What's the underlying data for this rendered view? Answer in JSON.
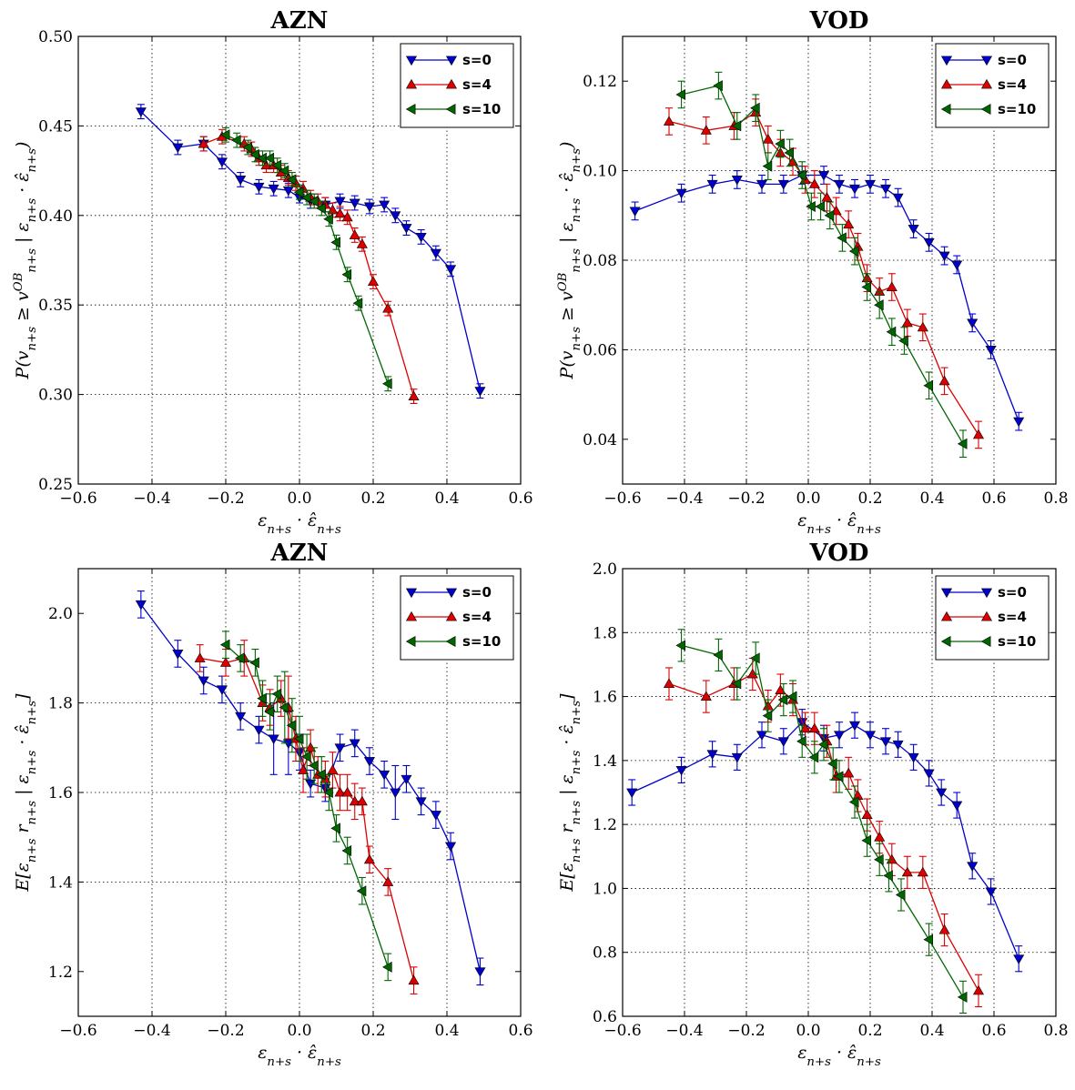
{
  "chart_data": [
    {
      "type": "line",
      "title": "AZN",
      "xlabel": "ε_{n+s} · ε̂_{n+s}",
      "ylabel": "P(v_{n+s} ≥ v^{OB}_{n+s} | ε_{n+s} · ε̂_{n+s})",
      "xlim": [
        -0.6,
        0.6
      ],
      "ylim": [
        0.25,
        0.5
      ],
      "xticks": [
        "−0.6",
        "−0.4",
        "−0.2",
        "0.0",
        "0.2",
        "0.4",
        "0.6"
      ],
      "yticks": [
        "0.25",
        "0.30",
        "0.35",
        "0.40",
        "0.45",
        "0.50"
      ],
      "xtick_values": [
        -0.6,
        -0.4,
        -0.2,
        0.0,
        0.2,
        0.4,
        0.6
      ],
      "ytick_values": [
        0.25,
        0.3,
        0.35,
        0.4,
        0.45,
        0.5
      ],
      "grid": true,
      "legend": "top-right",
      "series": [
        {
          "name": "s=0",
          "color": "#0000cc",
          "marker": "tri-down",
          "x": [
            -0.43,
            -0.33,
            -0.26,
            -0.21,
            -0.16,
            -0.11,
            -0.07,
            -0.03,
            0.0,
            0.03,
            0.07,
            0.11,
            0.15,
            0.19,
            0.23,
            0.26,
            0.29,
            0.33,
            0.37,
            0.41,
            0.49
          ],
          "y": [
            0.458,
            0.438,
            0.44,
            0.43,
            0.42,
            0.416,
            0.415,
            0.414,
            0.41,
            0.408,
            0.406,
            0.408,
            0.407,
            0.405,
            0.406,
            0.4,
            0.393,
            0.388,
            0.379,
            0.37,
            0.302
          ],
          "err": [
            0.004,
            0.004,
            0.004,
            0.004,
            0.004,
            0.004,
            0.004,
            0.004,
            0.003,
            0.004,
            0.004,
            0.004,
            0.004,
            0.004,
            0.004,
            0.004,
            0.004,
            0.004,
            0.004,
            0.004,
            0.004
          ]
        },
        {
          "name": "s=4",
          "color": "#dd0000",
          "marker": "tri-up",
          "x": [
            -0.26,
            -0.21,
            -0.15,
            -0.13,
            -0.11,
            -0.09,
            -0.07,
            -0.05,
            -0.03,
            -0.01,
            0.01,
            0.03,
            0.05,
            0.07,
            0.09,
            0.11,
            0.13,
            0.15,
            0.17,
            0.2,
            0.24,
            0.31
          ],
          "y": [
            0.44,
            0.444,
            0.44,
            0.437,
            0.432,
            0.428,
            0.428,
            0.424,
            0.421,
            0.418,
            0.415,
            0.41,
            0.408,
            0.406,
            0.403,
            0.401,
            0.399,
            0.389,
            0.384,
            0.363,
            0.348,
            0.299
          ],
          "err": [
            0.004,
            0.004,
            0.004,
            0.004,
            0.004,
            0.004,
            0.004,
            0.004,
            0.004,
            0.004,
            0.004,
            0.004,
            0.004,
            0.004,
            0.004,
            0.004,
            0.004,
            0.004,
            0.004,
            0.004,
            0.004,
            0.004
          ]
        },
        {
          "name": "s=10",
          "color": "#006600",
          "marker": "tri-left",
          "x": [
            -0.2,
            -0.17,
            -0.14,
            -0.12,
            -0.1,
            -0.08,
            -0.06,
            -0.04,
            -0.02,
            0.0,
            0.02,
            0.04,
            0.06,
            0.08,
            0.1,
            0.13,
            0.16,
            0.24
          ],
          "y": [
            0.445,
            0.442,
            0.438,
            0.434,
            0.432,
            0.432,
            0.428,
            0.425,
            0.42,
            0.413,
            0.41,
            0.408,
            0.404,
            0.398,
            0.385,
            0.367,
            0.351,
            0.306
          ],
          "err": [
            0.004,
            0.004,
            0.004,
            0.004,
            0.004,
            0.004,
            0.004,
            0.004,
            0.004,
            0.004,
            0.004,
            0.004,
            0.004,
            0.004,
            0.004,
            0.004,
            0.004,
            0.004
          ]
        }
      ]
    },
    {
      "type": "line",
      "title": "VOD",
      "xlabel": "ε_{n+s} · ε̂_{n+s}",
      "ylabel": "P(v_{n+s} ≥ v^{OB}_{n+s} | ε_{n+s} · ε̂_{n+s})",
      "xlim": [
        -0.6,
        0.8
      ],
      "ylim": [
        0.03,
        0.13
      ],
      "xticks": [
        "−0.6",
        "−0.4",
        "−0.2",
        "0.0",
        "0.2",
        "0.4",
        "0.6",
        "0.8"
      ],
      "yticks": [
        "0.04",
        "0.06",
        "0.08",
        "0.10",
        "0.12"
      ],
      "xtick_values": [
        -0.6,
        -0.4,
        -0.2,
        0.0,
        0.2,
        0.4,
        0.6,
        0.8
      ],
      "ytick_values": [
        0.04,
        0.06,
        0.08,
        0.1,
        0.12
      ],
      "grid": true,
      "legend": "top-right",
      "series": [
        {
          "name": "s=0",
          "color": "#0000cc",
          "marker": "tri-down",
          "x": [
            -0.56,
            -0.41,
            -0.31,
            -0.23,
            -0.15,
            -0.08,
            -0.02,
            0.05,
            0.1,
            0.15,
            0.2,
            0.25,
            0.29,
            0.34,
            0.39,
            0.44,
            0.48,
            0.53,
            0.59,
            0.68
          ],
          "y": [
            0.091,
            0.095,
            0.097,
            0.098,
            0.097,
            0.097,
            0.099,
            0.099,
            0.097,
            0.096,
            0.097,
            0.096,
            0.094,
            0.087,
            0.084,
            0.081,
            0.079,
            0.066,
            0.06,
            0.044
          ],
          "err": [
            0.002,
            0.002,
            0.002,
            0.002,
            0.002,
            0.002,
            0.002,
            0.002,
            0.002,
            0.002,
            0.002,
            0.002,
            0.002,
            0.002,
            0.002,
            0.002,
            0.002,
            0.002,
            0.002,
            0.002
          ]
        },
        {
          "name": "s=4",
          "color": "#dd0000",
          "marker": "tri-up",
          "x": [
            -0.45,
            -0.33,
            -0.24,
            -0.17,
            -0.13,
            -0.09,
            -0.05,
            -0.01,
            0.02,
            0.06,
            0.09,
            0.13,
            0.16,
            0.19,
            0.23,
            0.27,
            0.32,
            0.37,
            0.44,
            0.55
          ],
          "y": [
            0.111,
            0.109,
            0.11,
            0.113,
            0.107,
            0.104,
            0.102,
            0.098,
            0.097,
            0.094,
            0.091,
            0.088,
            0.083,
            0.076,
            0.073,
            0.074,
            0.066,
            0.065,
            0.053,
            0.041
          ],
          "err": [
            0.003,
            0.003,
            0.003,
            0.003,
            0.003,
            0.003,
            0.003,
            0.003,
            0.003,
            0.003,
            0.003,
            0.003,
            0.003,
            0.003,
            0.003,
            0.003,
            0.003,
            0.003,
            0.003,
            0.003
          ]
        },
        {
          "name": "s=10",
          "color": "#006600",
          "marker": "tri-left",
          "x": [
            -0.41,
            -0.29,
            -0.23,
            -0.17,
            -0.13,
            -0.09,
            -0.06,
            -0.02,
            0.01,
            0.04,
            0.07,
            0.11,
            0.15,
            0.19,
            0.23,
            0.27,
            0.31,
            0.39,
            0.5
          ],
          "y": [
            0.117,
            0.119,
            0.11,
            0.114,
            0.101,
            0.106,
            0.104,
            0.099,
            0.092,
            0.092,
            0.09,
            0.085,
            0.082,
            0.074,
            0.07,
            0.064,
            0.062,
            0.052,
            0.039
          ],
          "err": [
            0.003,
            0.003,
            0.003,
            0.003,
            0.003,
            0.003,
            0.003,
            0.003,
            0.003,
            0.003,
            0.003,
            0.003,
            0.003,
            0.003,
            0.003,
            0.003,
            0.003,
            0.003,
            0.003
          ]
        }
      ]
    },
    {
      "type": "line",
      "title": "AZN",
      "xlabel": "ε_{n+s} · ε̂_{n+s}",
      "ylabel": "E[ε_{n+s} r_{n+s} | ε_{n+s} · ε̂_{n+s}]",
      "xlim": [
        -0.6,
        0.6
      ],
      "ylim": [
        1.1,
        2.1
      ],
      "xticks": [
        "−0.6",
        "−0.4",
        "−0.2",
        "0.0",
        "0.2",
        "0.4",
        "0.6"
      ],
      "yticks": [
        "1.2",
        "1.4",
        "1.6",
        "1.8",
        "2.0"
      ],
      "xtick_values": [
        -0.6,
        -0.4,
        -0.2,
        0.0,
        0.2,
        0.4,
        0.6
      ],
      "ytick_values": [
        1.2,
        1.4,
        1.6,
        1.8,
        2.0
      ],
      "grid": true,
      "legend": "top-right",
      "series": [
        {
          "name": "s=0",
          "color": "#0000cc",
          "marker": "tri-down",
          "x": [
            -0.43,
            -0.33,
            -0.26,
            -0.21,
            -0.16,
            -0.11,
            -0.07,
            -0.03,
            0.0,
            0.03,
            0.07,
            0.11,
            0.15,
            0.19,
            0.23,
            0.26,
            0.29,
            0.33,
            0.37,
            0.41,
            0.49
          ],
          "y": [
            2.02,
            1.91,
            1.85,
            1.83,
            1.77,
            1.74,
            1.72,
            1.71,
            1.69,
            1.62,
            1.61,
            1.7,
            1.71,
            1.67,
            1.64,
            1.6,
            1.63,
            1.58,
            1.55,
            1.48,
            1.2
          ],
          "err": [
            0.03,
            0.03,
            0.03,
            0.03,
            0.03,
            0.03,
            0.08,
            0.07,
            0.04,
            0.03,
            0.03,
            0.03,
            0.03,
            0.03,
            0.03,
            0.06,
            0.03,
            0.03,
            0.03,
            0.03,
            0.03
          ]
        },
        {
          "name": "s=4",
          "color": "#dd0000",
          "marker": "tri-up",
          "x": [
            -0.27,
            -0.2,
            -0.15,
            -0.1,
            -0.08,
            -0.05,
            -0.03,
            -0.01,
            0.01,
            0.03,
            0.05,
            0.07,
            0.09,
            0.11,
            0.13,
            0.15,
            0.17,
            0.19,
            0.24,
            0.31
          ],
          "y": [
            1.9,
            1.89,
            1.9,
            1.8,
            1.79,
            1.81,
            1.79,
            1.72,
            1.65,
            1.7,
            1.64,
            1.63,
            1.65,
            1.6,
            1.6,
            1.58,
            1.58,
            1.45,
            1.4,
            1.18
          ],
          "err": [
            0.03,
            0.03,
            0.04,
            0.04,
            0.04,
            0.04,
            0.07,
            0.05,
            0.05,
            0.04,
            0.04,
            0.04,
            0.04,
            0.04,
            0.04,
            0.04,
            0.03,
            0.03,
            0.03,
            0.03
          ]
        },
        {
          "name": "s=10",
          "color": "#006600",
          "marker": "tri-left",
          "x": [
            -0.2,
            -0.16,
            -0.12,
            -0.1,
            -0.08,
            -0.06,
            -0.04,
            -0.02,
            0.0,
            0.02,
            0.04,
            0.06,
            0.08,
            0.1,
            0.13,
            0.17,
            0.24
          ],
          "y": [
            1.93,
            1.9,
            1.89,
            1.81,
            1.78,
            1.82,
            1.79,
            1.75,
            1.72,
            1.68,
            1.66,
            1.64,
            1.6,
            1.52,
            1.47,
            1.38,
            1.21
          ],
          "err": [
            0.03,
            0.03,
            0.03,
            0.04,
            0.04,
            0.04,
            0.08,
            0.06,
            0.05,
            0.05,
            0.04,
            0.04,
            0.04,
            0.03,
            0.03,
            0.03,
            0.03
          ]
        }
      ]
    },
    {
      "type": "line",
      "title": "VOD",
      "xlabel": "ε_{n+s} · ε̂_{n+s}",
      "ylabel": "E[ε_{n+s} r_{n+s} | ε_{n+s} · ε̂_{n+s}]",
      "xlim": [
        -0.6,
        0.8
      ],
      "ylim": [
        0.6,
        2.0
      ],
      "xticks": [
        "−0.6",
        "−0.4",
        "−0.2",
        "0.0",
        "0.2",
        "0.4",
        "0.6",
        "0.8"
      ],
      "yticks": [
        "0.6",
        "0.8",
        "1.0",
        "1.2",
        "1.4",
        "1.6",
        "1.8",
        "2.0"
      ],
      "xtick_values": [
        -0.6,
        -0.4,
        -0.2,
        0.0,
        0.2,
        0.4,
        0.6,
        0.8
      ],
      "ytick_values": [
        0.6,
        0.8,
        1.0,
        1.2,
        1.4,
        1.6,
        1.8,
        2.0
      ],
      "grid": true,
      "legend": "top-right",
      "series": [
        {
          "name": "s=0",
          "color": "#0000cc",
          "marker": "tri-down",
          "x": [
            -0.57,
            -0.41,
            -0.31,
            -0.23,
            -0.15,
            -0.08,
            -0.02,
            0.05,
            0.1,
            0.15,
            0.2,
            0.25,
            0.29,
            0.34,
            0.39,
            0.43,
            0.48,
            0.53,
            0.59,
            0.68
          ],
          "y": [
            1.3,
            1.37,
            1.42,
            1.41,
            1.48,
            1.46,
            1.52,
            1.47,
            1.48,
            1.51,
            1.48,
            1.46,
            1.45,
            1.41,
            1.36,
            1.3,
            1.26,
            1.07,
            0.99,
            0.78
          ],
          "err": [
            0.04,
            0.04,
            0.04,
            0.04,
            0.04,
            0.04,
            0.04,
            0.04,
            0.04,
            0.04,
            0.04,
            0.04,
            0.04,
            0.04,
            0.04,
            0.04,
            0.04,
            0.04,
            0.04,
            0.04
          ]
        },
        {
          "name": "s=4",
          "color": "#dd0000",
          "marker": "tri-up",
          "x": [
            -0.45,
            -0.33,
            -0.24,
            -0.18,
            -0.13,
            -0.09,
            -0.05,
            -0.01,
            0.02,
            0.06,
            0.09,
            0.13,
            0.16,
            0.19,
            0.23,
            0.27,
            0.32,
            0.37,
            0.44,
            0.55
          ],
          "y": [
            1.64,
            1.6,
            1.64,
            1.67,
            1.57,
            1.62,
            1.59,
            1.5,
            1.5,
            1.46,
            1.35,
            1.36,
            1.29,
            1.23,
            1.16,
            1.09,
            1.05,
            1.05,
            0.87,
            0.68
          ],
          "err": [
            0.05,
            0.05,
            0.05,
            0.05,
            0.05,
            0.05,
            0.05,
            0.05,
            0.05,
            0.05,
            0.05,
            0.05,
            0.05,
            0.05,
            0.05,
            0.05,
            0.05,
            0.05,
            0.05,
            0.05
          ]
        },
        {
          "name": "s=10",
          "color": "#006600",
          "marker": "tri-left",
          "x": [
            -0.41,
            -0.29,
            -0.23,
            -0.17,
            -0.13,
            -0.08,
            -0.05,
            -0.02,
            0.02,
            0.05,
            0.08,
            0.1,
            0.15,
            0.19,
            0.23,
            0.26,
            0.3,
            0.39,
            0.5
          ],
          "y": [
            1.76,
            1.73,
            1.64,
            1.72,
            1.54,
            1.59,
            1.6,
            1.46,
            1.41,
            1.45,
            1.39,
            1.35,
            1.27,
            1.15,
            1.09,
            1.04,
            0.98,
            0.84,
            0.66
          ],
          "err": [
            0.05,
            0.05,
            0.05,
            0.05,
            0.05,
            0.05,
            0.05,
            0.05,
            0.05,
            0.05,
            0.05,
            0.05,
            0.05,
            0.05,
            0.05,
            0.05,
            0.05,
            0.05,
            0.05
          ]
        }
      ]
    }
  ]
}
